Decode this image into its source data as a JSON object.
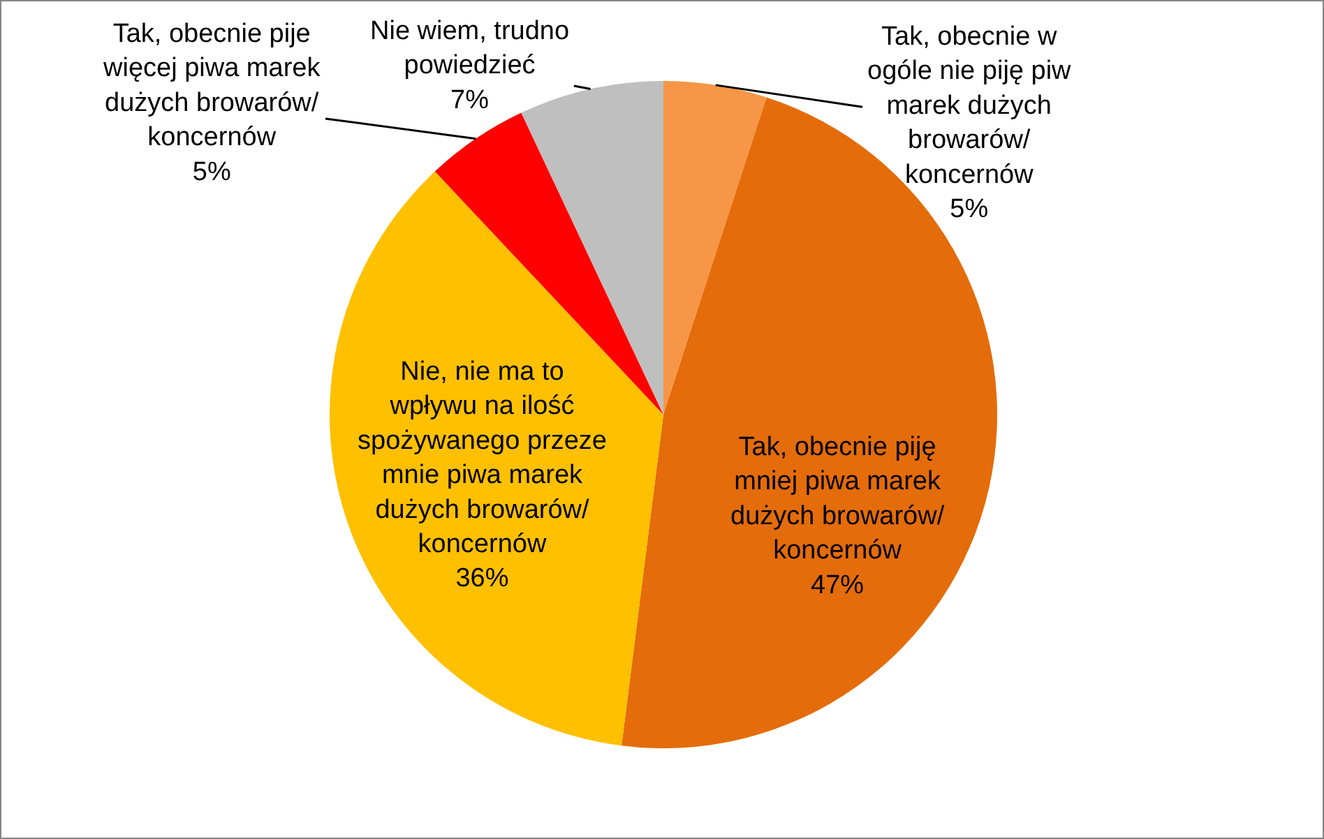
{
  "chart_data": {
    "type": "pie",
    "categories": [
      "Tak, obecnie w ogóle nie piję piw marek dużych browarów/ koncernów",
      "Tak, obecnie piję mniej piwa marek dużych browarów/ koncernów",
      "Nie, nie ma to wpływu na ilość spożywanego przeze mnie piwa marek dużych browarów/ koncernów",
      "Tak, obecnie pije więcej piwa marek dużych browarów/ koncernów",
      "Nie wiem, trudno powiedzieć"
    ],
    "values": [
      5,
      47,
      36,
      5,
      7
    ],
    "colors": [
      "#f79646",
      "#e46c0a",
      "#ffc000",
      "#ff0000",
      "#bfbfbf"
    ],
    "value_labels": [
      "5%",
      "47%",
      "36%",
      "5%",
      "7%"
    ]
  }
}
